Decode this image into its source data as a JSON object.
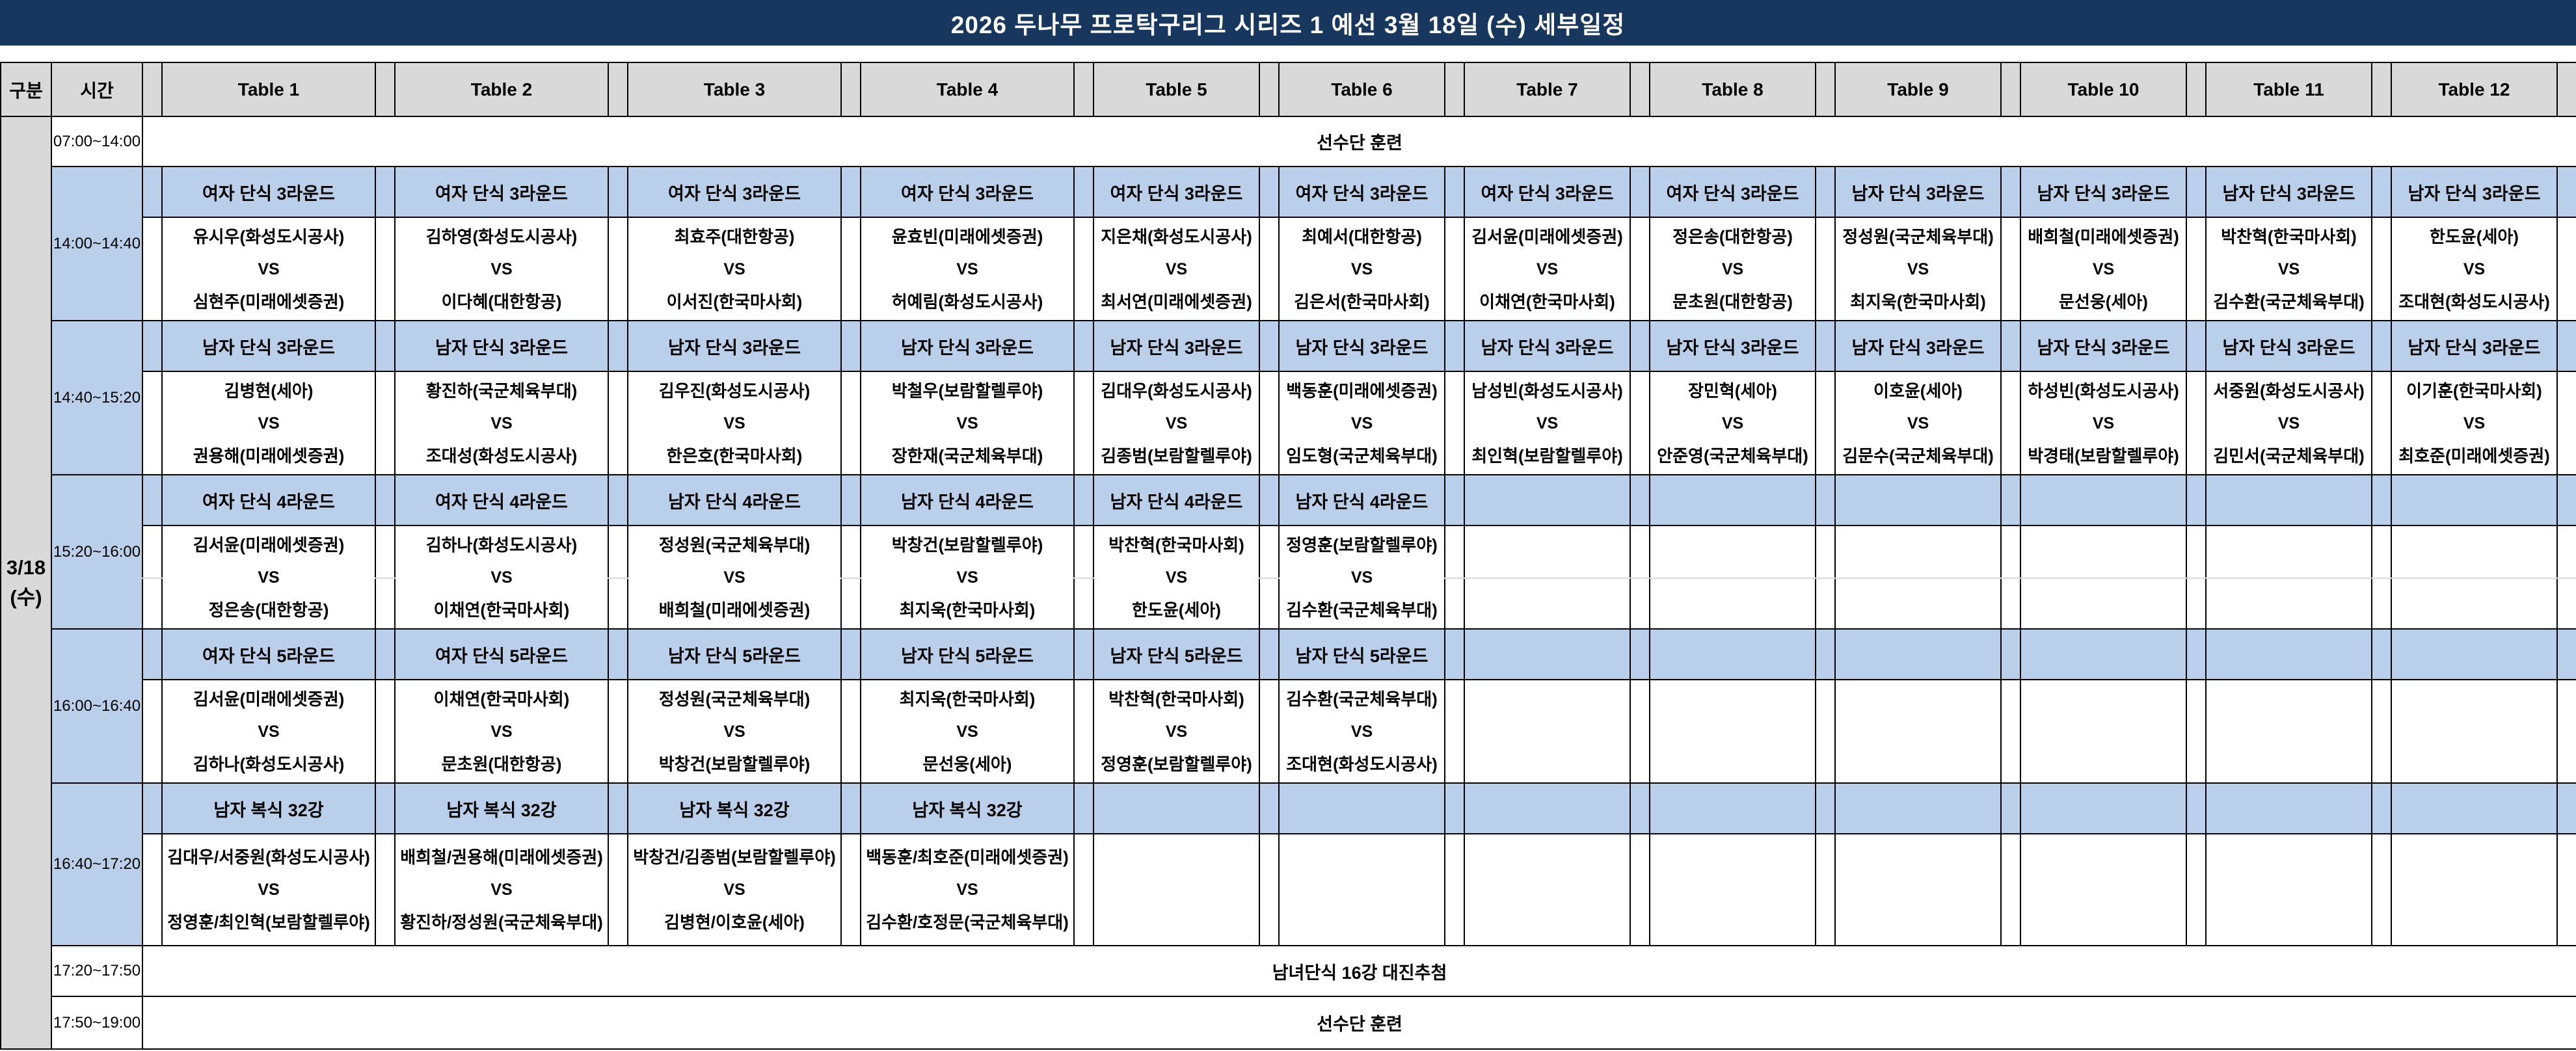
{
  "title": "2026 두나무 프로탁구리그 시리즈 1 예선 3월 18일 (수) 세부일정",
  "columns": {
    "gubun": "구분",
    "time": "시간",
    "tables": [
      "Table 1",
      "Table 2",
      "Table 3",
      "Table 4",
      "Table 5",
      "Table 6",
      "Table 7",
      "Table 8",
      "Table 9",
      "Table 10",
      "Table 11",
      "Table 12"
    ]
  },
  "date_cell": {
    "line1": "3/18",
    "line2": "(수)"
  },
  "vs_label": "VS",
  "colors": {
    "title_bg": "#17375E",
    "header_bg": "#D9D9D9",
    "band_bg": "#B9CFEA",
    "border": "#000000"
  },
  "rows": [
    {
      "type": "full",
      "time": "07:00~14:00",
      "text": "선수단 훈련"
    },
    {
      "type": "block",
      "time": "14:00~14:40",
      "midline": false,
      "tables": [
        {
          "label": "여자 단식 3라운드",
          "p1": "유시우(화성도시공사)",
          "p2": "심현주(미래에셋증권)"
        },
        {
          "label": "여자 단식 3라운드",
          "p1": "김하영(화성도시공사)",
          "p2": "이다혜(대한항공)"
        },
        {
          "label": "여자 단식 3라운드",
          "p1": "최효주(대한항공)",
          "p2": "이서진(한국마사회)"
        },
        {
          "label": "여자 단식 3라운드",
          "p1": "윤효빈(미래에셋증권)",
          "p2": "허예림(화성도시공사)"
        },
        {
          "label": "여자 단식 3라운드",
          "p1": "지은채(화성도시공사)",
          "p2": "최서연(미래에셋증권)"
        },
        {
          "label": "여자 단식 3라운드",
          "p1": "최예서(대한항공)",
          "p2": "김은서(한국마사회)"
        },
        {
          "label": "여자 단식 3라운드",
          "p1": "김서윤(미래에셋증권)",
          "p2": "이채연(한국마사회)"
        },
        {
          "label": "여자 단식 3라운드",
          "p1": "정은송(대한항공)",
          "p2": "문초원(대한항공)"
        },
        {
          "label": "남자 단식 3라운드",
          "p1": "정성원(국군체육부대)",
          "p2": "최지욱(한국마사회)"
        },
        {
          "label": "남자 단식 3라운드",
          "p1": "배희철(미래에셋증권)",
          "p2": "문선웅(세아)"
        },
        {
          "label": "남자 단식 3라운드",
          "p1": "박찬혁(한국마사회)",
          "p2": "김수환(국군체육부대)"
        },
        {
          "label": "남자 단식 3라운드",
          "p1": "한도윤(세아)",
          "p2": "조대현(화성도시공사)"
        }
      ]
    },
    {
      "type": "block",
      "time": "14:40~15:20",
      "midline": false,
      "tables": [
        {
          "label": "남자 단식 3라운드",
          "p1": "김병현(세아)",
          "p2": "권용해(미래에셋증권)"
        },
        {
          "label": "남자 단식 3라운드",
          "p1": "황진하(국군체육부대)",
          "p2": "조대성(화성도시공사)"
        },
        {
          "label": "남자 단식 3라운드",
          "p1": "김우진(화성도시공사)",
          "p2": "한은호(한국마사회)"
        },
        {
          "label": "남자 단식 3라운드",
          "p1": "박철우(보람할렐루야)",
          "p2": "장한재(국군체육부대)"
        },
        {
          "label": "남자 단식 3라운드",
          "p1": "김대우(화성도시공사)",
          "p2": "김종범(보람할렐루야)"
        },
        {
          "label": "남자 단식 3라운드",
          "p1": "백동훈(미래에셋증권)",
          "p2": "임도형(국군체육부대)"
        },
        {
          "label": "남자 단식 3라운드",
          "p1": "남성빈(화성도시공사)",
          "p2": "최인혁(보람할렐루야)"
        },
        {
          "label": "남자 단식 3라운드",
          "p1": "장민혁(세아)",
          "p2": "안준영(국군체육부대)"
        },
        {
          "label": "남자 단식 3라운드",
          "p1": "이호윤(세아)",
          "p2": "김문수(국군체육부대)"
        },
        {
          "label": "남자 단식 3라운드",
          "p1": "하성빈(화성도시공사)",
          "p2": "박경태(보람할렐루야)"
        },
        {
          "label": "남자 단식 3라운드",
          "p1": "서중원(화성도시공사)",
          "p2": "김민서(국군체육부대)"
        },
        {
          "label": "남자 단식 3라운드",
          "p1": "이기훈(한국마사회)",
          "p2": "최호준(미래에셋증권)"
        }
      ]
    },
    {
      "type": "block",
      "time": "15:20~16:00",
      "midline": true,
      "tables": [
        {
          "label": "여자 단식 4라운드",
          "p1": "김서윤(미래에셋증권)",
          "p2": "정은송(대한항공)"
        },
        {
          "label": "여자 단식 4라운드",
          "p1": "김하나(화성도시공사)",
          "p2": "이채연(한국마사회)"
        },
        {
          "label": "남자 단식 4라운드",
          "p1": "정성원(국군체육부대)",
          "p2": "배희철(미래에셋증권)"
        },
        {
          "label": "남자 단식 4라운드",
          "p1": "박창건(보람할렐루야)",
          "p2": "최지욱(한국마사회)"
        },
        {
          "label": "남자 단식 4라운드",
          "p1": "박찬혁(한국마사회)",
          "p2": "한도윤(세아)"
        },
        {
          "label": "남자 단식 4라운드",
          "p1": "정영훈(보람할렐루야)",
          "p2": "김수환(국군체육부대)"
        },
        null,
        null,
        null,
        null,
        null,
        null
      ]
    },
    {
      "type": "block",
      "time": "16:00~16:40",
      "midline": false,
      "tables": [
        {
          "label": "여자 단식 5라운드",
          "p1": "김서윤(미래에셋증권)",
          "p2": "김하나(화성도시공사)"
        },
        {
          "label": "여자 단식 5라운드",
          "p1": "이채연(한국마사회)",
          "p2": "문초원(대한항공)"
        },
        {
          "label": "남자 단식 5라운드",
          "p1": "정성원(국군체육부대)",
          "p2": "박창건(보람할렐루야)"
        },
        {
          "label": "남자 단식 5라운드",
          "p1": "최지욱(한국마사회)",
          "p2": "문선웅(세아)"
        },
        {
          "label": "남자 단식 5라운드",
          "p1": "박찬혁(한국마사회)",
          "p2": "정영훈(보람할렐루야)"
        },
        {
          "label": "남자 단식 5라운드",
          "p1": "김수환(국군체육부대)",
          "p2": "조대현(화성도시공사)"
        },
        null,
        null,
        null,
        null,
        null,
        null
      ]
    },
    {
      "type": "block",
      "time": "16:40~17:20",
      "midline": false,
      "tall": true,
      "tables": [
        {
          "label": "남자 복식 32강",
          "p1": "김대우/서중원(화성도시공사)",
          "p2": "정영훈/최인혁(보람할렐루야)"
        },
        {
          "label": "남자 복식 32강",
          "p1": "배희철/권용해(미래에셋증권)",
          "p2": "황진하/정성원(국군체육부대)"
        },
        {
          "label": "남자 복식 32강",
          "p1": "박창건/김종범(보람할렐루야)",
          "p2": "김병현/이호윤(세아)"
        },
        {
          "label": "남자 복식 32강",
          "p1": "백동훈/최호준(미래에셋증권)",
          "p2": "김수환/호정문(국군체육부대)"
        },
        null,
        null,
        null,
        null,
        null,
        null,
        null,
        null
      ]
    },
    {
      "type": "full",
      "time": "17:20~17:50",
      "text": "남녀단식 16강 대진추첨"
    },
    {
      "type": "full",
      "time": "17:50~19:00",
      "text": "선수단 훈련"
    }
  ]
}
